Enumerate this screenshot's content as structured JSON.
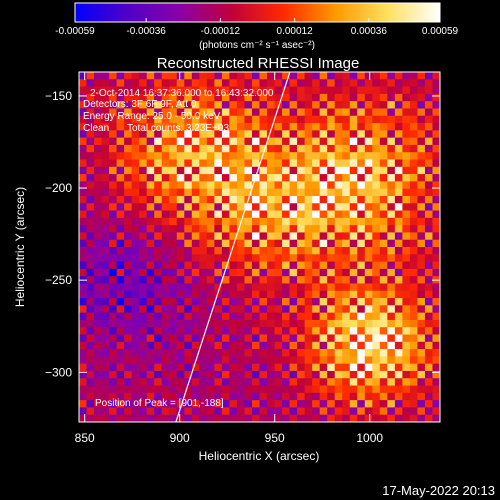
{
  "chart_data": {
    "type": "heatmap",
    "title": "Reconstructed RHESSI Image",
    "xlabel": "Heliocentric X (arcsec)",
    "ylabel": "Heliocentric Y (arcsec)",
    "xlim": [
      847,
      1037
    ],
    "ylim": [
      -327,
      -137
    ],
    "x_ticks": [
      850,
      900,
      950,
      1000
    ],
    "y_ticks": [
      -150,
      -200,
      -250,
      -300
    ],
    "colorbar": {
      "min": -0.00059,
      "max": 0.00059,
      "ticks": [
        "-0.00059",
        "-0.00036",
        "-0.00012",
        "0.00012",
        "0.00036",
        "0.00059"
      ],
      "units": "(photons cm⁻² s⁻¹ asec⁻²)",
      "colors": [
        "#0000ff",
        "#5000c8",
        "#8a00a8",
        "#c0003a",
        "#ff2a00",
        "#ff9a00",
        "#ffe060",
        "#ffffff"
      ]
    },
    "annotations": [
      "2-Oct-2014 16:37:36.000 to 16:43:32.000",
      "Detectors: 3F 6F 9F, Att 0",
      "Energy Range: 25.0 - 50.0 keV",
      "Clean",
      "Total counts: 3.23E+03"
    ],
    "peak_label": "Position of Peak = [901,-188]",
    "limb_line": [
      {
        "x": 898,
        "y": -327
      },
      {
        "x": 958,
        "y": -137
      }
    ],
    "sources": [
      {
        "x": 1000,
        "y": -285,
        "sigma": 22,
        "amplitude": 1.0
      },
      {
        "x": 995,
        "y": -195,
        "sigma": 30,
        "amplitude": 0.8
      },
      {
        "x": 905,
        "y": -180,
        "sigma": 28,
        "amplitude": 0.7
      },
      {
        "x": 945,
        "y": -215,
        "sigma": 25,
        "amplitude": 0.5
      },
      {
        "x": 870,
        "y": -250,
        "sigma": 25,
        "amplitude": -0.3
      }
    ]
  },
  "footer": {
    "date": "17-May-2022 20:13"
  }
}
